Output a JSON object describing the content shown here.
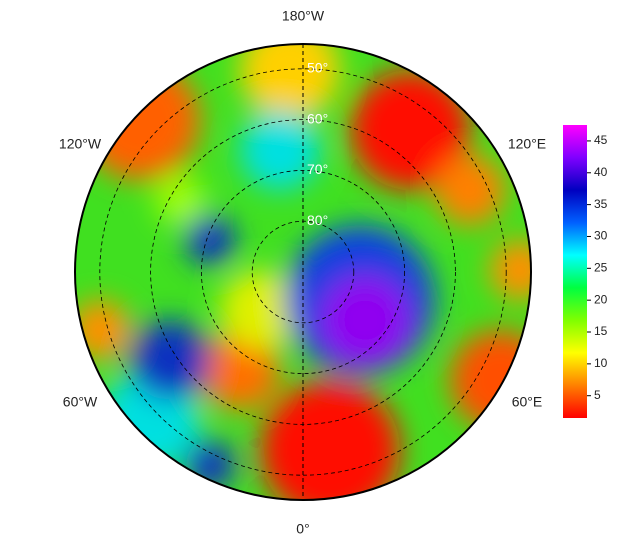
{
  "map": {
    "longitude_labels": {
      "top": "180°W",
      "top_right": "120°E",
      "bottom_right": "60°E",
      "bottom": "0°",
      "bottom_left": "60°W",
      "top_left": "120°W"
    },
    "latitude_circles": [
      {
        "value": 50,
        "label": "50°"
      },
      {
        "value": 60,
        "label": "60°"
      },
      {
        "value": 70,
        "label": "70°"
      },
      {
        "value": 80,
        "label": "80°"
      }
    ]
  },
  "colorbar": {
    "lim": [
      1.5,
      47.5
    ],
    "ticks": [
      5,
      10,
      15,
      20,
      25,
      30,
      35,
      40,
      45
    ],
    "colors": [
      "#ff0000",
      "#ff8000",
      "#ffff00",
      "#80ff00",
      "#00ff40",
      "#00ffff",
      "#0060ff",
      "#0000c0",
      "#8000ff",
      "#ff00ff"
    ]
  }
}
